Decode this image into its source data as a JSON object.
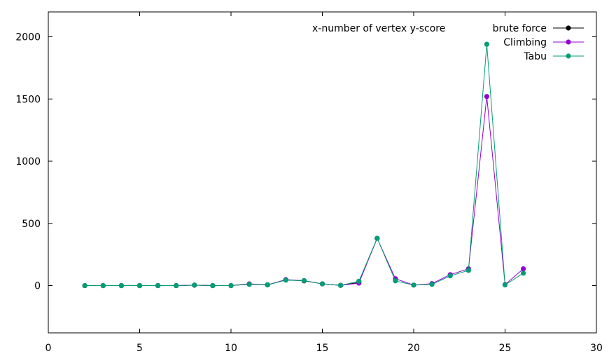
{
  "chart_data": {
    "type": "line",
    "title": "",
    "xlabel": "",
    "ylabel": "",
    "annotation": "x-number of vertex   y-score",
    "xlim": [
      0,
      30
    ],
    "ylim": [
      -380,
      2200
    ],
    "x_ticks": [
      0,
      5,
      10,
      15,
      20,
      25,
      30
    ],
    "y_ticks": [
      0,
      500,
      1000,
      1500,
      2000
    ],
    "grid": false,
    "legend_position": "top-right",
    "series": [
      {
        "name": "brute force",
        "color": "#000000",
        "x": [
          2,
          3,
          4,
          5,
          6,
          7,
          8,
          9,
          10,
          11,
          12,
          13,
          14,
          15,
          16,
          17,
          18
        ],
        "values": [
          0,
          0,
          0,
          0,
          0,
          0,
          3,
          0,
          0,
          12,
          6,
          45,
          38,
          14,
          2,
          25,
          380
        ]
      },
      {
        "name": "Climbing",
        "color": "#9400d3",
        "x": [
          2,
          3,
          4,
          5,
          6,
          7,
          8,
          9,
          10,
          11,
          12,
          13,
          14,
          15,
          16,
          17,
          18,
          19,
          20,
          21,
          22,
          23,
          24,
          25,
          26
        ],
        "values": [
          0,
          0,
          0,
          0,
          0,
          0,
          4,
          0,
          0,
          14,
          6,
          48,
          40,
          14,
          2,
          20,
          380,
          55,
          4,
          16,
          88,
          135,
          1520,
          8,
          135
        ]
      },
      {
        "name": "Tabu",
        "color": "#009e73",
        "x": [
          2,
          3,
          4,
          5,
          6,
          7,
          8,
          9,
          10,
          11,
          12,
          13,
          14,
          15,
          16,
          17,
          18,
          19,
          20,
          21,
          22,
          23,
          24,
          25,
          26
        ],
        "values": [
          0,
          0,
          0,
          0,
          0,
          0,
          4,
          0,
          0,
          10,
          6,
          44,
          40,
          14,
          2,
          35,
          380,
          38,
          4,
          10,
          78,
          122,
          1940,
          5,
          100
        ]
      }
    ]
  }
}
